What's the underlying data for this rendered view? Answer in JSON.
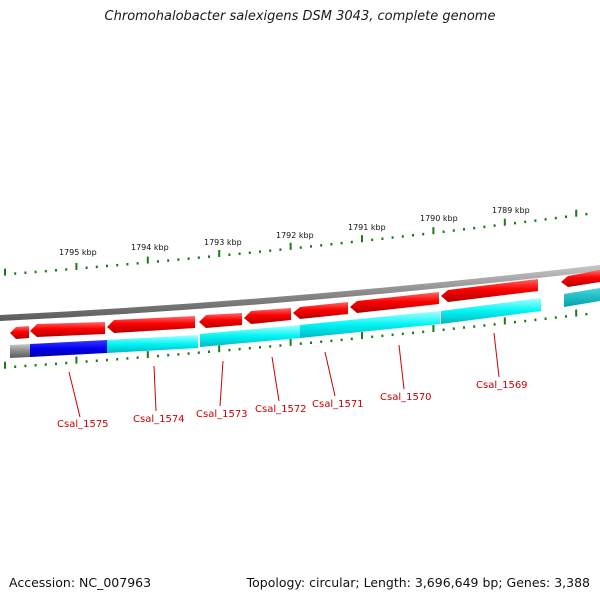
{
  "title": "Chromohalobacter salexigens DSM 3043, complete genome",
  "footer": {
    "accession": "Accession: NC_007963",
    "summary": "Topology: circular; Length: 3,696,649 bp; Genes: 3,388"
  },
  "colors": {
    "scale_tick": "#1a7a1a",
    "backbone": "#8a8a8a",
    "gene_forward": "#ff0000",
    "gene_reverse": "#ff0000",
    "cds_track": "#00ffff",
    "selected_cds": "#0000ff",
    "label": "#cc0000"
  },
  "scale_labels": [
    "1795 kbp",
    "1794 kbp",
    "1793 kbp",
    "1792 kbp",
    "1791 kbp",
    "1790 kbp",
    "1789 kbp"
  ],
  "genes": [
    {
      "tag": "Csal_1575"
    },
    {
      "tag": "Csal_1574"
    },
    {
      "tag": "Csal_1573"
    },
    {
      "tag": "Csal_1572"
    },
    {
      "tag": "Csal_1571"
    },
    {
      "tag": "Csal_1570"
    },
    {
      "tag": "Csal_1569"
    }
  ]
}
